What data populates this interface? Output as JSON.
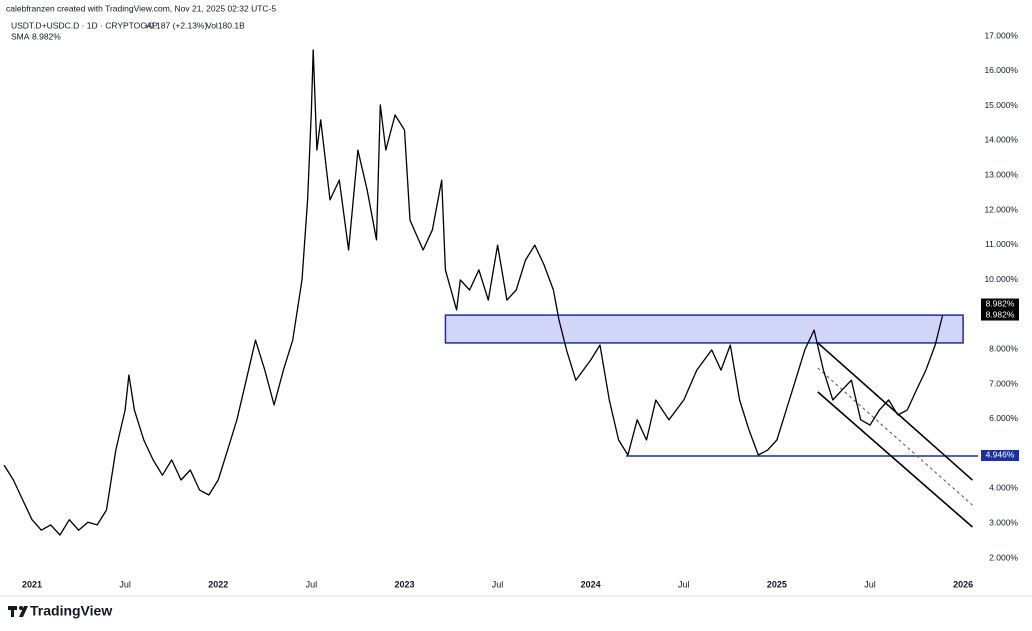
{
  "header": {
    "credit": "calebfranzen created with TradingView.com, Nov 21, 2025 02:32 UTC-5",
    "symbol": "USDT.D+USDC.D · 1D · CRYPTOCAP",
    "change": "+0.187 (+2.13%)",
    "volume": "Vol180.1B",
    "indicator": "SMA",
    "indicator_value": "8.982%"
  },
  "footer": {
    "logo": "TradingView"
  },
  "chart_data": {
    "type": "line",
    "x": [
      2020.85,
      2020.9,
      2020.95,
      2021.0,
      2021.05,
      2021.1,
      2021.15,
      2021.2,
      2021.25,
      2021.3,
      2021.35,
      2021.4,
      2021.45,
      2021.5,
      2021.52,
      2021.55,
      2021.6,
      2021.65,
      2021.7,
      2021.75,
      2021.8,
      2021.85,
      2021.9,
      2021.95,
      2022.0,
      2022.05,
      2022.1,
      2022.15,
      2022.2,
      2022.25,
      2022.3,
      2022.35,
      2022.4,
      2022.45,
      2022.48,
      2022.5,
      2022.51,
      2022.53,
      2022.55,
      2022.6,
      2022.65,
      2022.7,
      2022.75,
      2022.8,
      2022.85,
      2022.87,
      2022.9,
      2022.95,
      2023.0,
      2023.03,
      2023.1,
      2023.15,
      2023.2,
      2023.22,
      2023.28,
      2023.3,
      2023.35,
      2023.4,
      2023.45,
      2023.5,
      2023.55,
      2023.6,
      2023.65,
      2023.7,
      2023.75,
      2023.8,
      2023.83,
      2023.87,
      2023.92,
      2024.0,
      2024.05,
      2024.1,
      2024.15,
      2024.2,
      2024.25,
      2024.3,
      2024.35,
      2024.42,
      2024.5,
      2024.57,
      2024.65,
      2024.7,
      2024.75,
      2024.8,
      2024.85,
      2024.9,
      2024.95,
      2025.0,
      2025.05,
      2025.1,
      2025.15,
      2025.2,
      2025.25,
      2025.3,
      2025.35,
      2025.4,
      2025.45,
      2025.5,
      2025.55,
      2025.6,
      2025.65,
      2025.7,
      2025.75,
      2025.8,
      2025.85,
      2025.89
    ],
    "series": [
      {
        "color": "#000000",
        "values": [
          4.67,
          4.24,
          3.67,
          3.1,
          2.8,
          2.95,
          2.66,
          3.1,
          2.8,
          3.03,
          2.95,
          3.38,
          5.1,
          6.25,
          7.26,
          6.25,
          5.39,
          4.82,
          4.38,
          4.82,
          4.24,
          4.53,
          3.95,
          3.81,
          4.24,
          5.1,
          5.97,
          7.11,
          8.26,
          7.4,
          6.4,
          7.4,
          8.26,
          9.99,
          12.29,
          14.87,
          16.6,
          13.72,
          14.59,
          12.29,
          12.86,
          10.85,
          13.72,
          12.57,
          11.14,
          15.02,
          13.72,
          14.73,
          14.3,
          11.71,
          10.85,
          11.43,
          12.86,
          10.28,
          9.13,
          9.99,
          9.7,
          10.28,
          9.41,
          10.99,
          9.41,
          9.7,
          10.56,
          10.99,
          10.42,
          9.7,
          8.84,
          7.98,
          7.11,
          7.69,
          8.12,
          6.54,
          5.39,
          4.96,
          5.97,
          5.39,
          6.54,
          5.97,
          6.54,
          7.4,
          7.98,
          7.4,
          8.12,
          6.54,
          5.68,
          4.96,
          5.1,
          5.39,
          6.25,
          7.11,
          7.98,
          8.55,
          7.4,
          6.54,
          6.83,
          7.11,
          5.97,
          5.82,
          6.25,
          6.54,
          6.11,
          6.25,
          6.83,
          7.4,
          8.12,
          8.98
        ]
      }
    ],
    "xlim": [
      2020.828,
      2026.08
    ],
    "xticks": [
      {
        "value": 2021,
        "label": "2021"
      },
      {
        "value": 2021.5,
        "label": "Jul"
      },
      {
        "value": 2022,
        "label": "2022"
      },
      {
        "value": 2022.5,
        "label": "Jul"
      },
      {
        "value": 2023,
        "label": "2023"
      },
      {
        "value": 2023.5,
        "label": "Jul"
      },
      {
        "value": 2024,
        "label": "2024"
      },
      {
        "value": 2024.5,
        "label": "Jul"
      },
      {
        "value": 2025,
        "label": "2025"
      },
      {
        "value": 2025.5,
        "label": "Jul"
      },
      {
        "value": 2026,
        "label": "2026"
      }
    ],
    "ylim": [
      2,
      17
    ],
    "yticks": [
      {
        "value": 2,
        "label": "2.000%"
      },
      {
        "value": 3,
        "label": "3.000%"
      },
      {
        "value": 4,
        "label": "4.000%"
      },
      {
        "value": 5,
        "label": "5.000%"
      },
      {
        "value": 6,
        "label": "6.000%"
      },
      {
        "value": 7,
        "label": "7.000%"
      },
      {
        "value": 8,
        "label": "8.000%"
      },
      {
        "value": 9,
        "label": "9.000%"
      },
      {
        "value": 10,
        "label": "10.000%"
      },
      {
        "value": 11,
        "label": "11.000%"
      },
      {
        "value": 12,
        "label": "12.000%"
      },
      {
        "value": 13,
        "label": "13.000%"
      },
      {
        "value": 14,
        "label": "14.000%"
      },
      {
        "value": 15,
        "label": "15.000%"
      },
      {
        "value": 16,
        "label": "16.000%"
      },
      {
        "value": 17,
        "label": "17.000%"
      }
    ],
    "grid": false,
    "zone": {
      "x": [
        2023.22,
        2026.0
      ],
      "y": [
        8.98,
        8.18
      ],
      "color": "#c5cbf5",
      "border": "#1c2fa0"
    },
    "support": {
      "x": [
        2024.19,
        2026.08
      ],
      "y": [
        4.93,
        4.93
      ],
      "color": "#1c2fa0"
    },
    "channel": [
      {
        "x": [
          2025.22,
          2026.05
        ],
        "y": [
          8.18,
          4.24
        ]
      },
      {
        "x": [
          2025.22,
          2026.05
        ],
        "y": [
          6.77,
          2.89
        ]
      }
    ],
    "channel_mid": {
      "x": [
        2025.22,
        2026.05
      ],
      "y": [
        7.46,
        3.52
      ]
    },
    "price_labels": [
      {
        "value": 8.982,
        "label": "8.982%",
        "color": "#000000"
      },
      {
        "value": 8.982,
        "label": "8.982%",
        "color": "#000000"
      },
      {
        "value": 4.946,
        "label": "4.946%",
        "color": "#1c2fa0"
      }
    ]
  }
}
